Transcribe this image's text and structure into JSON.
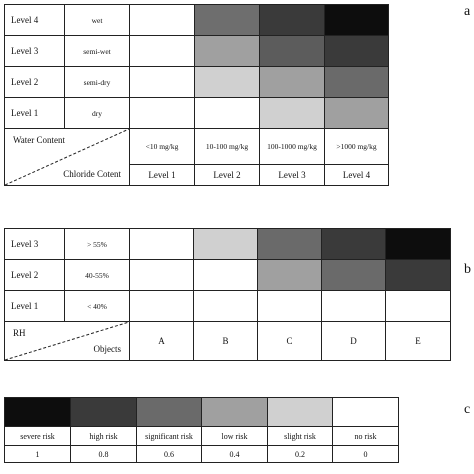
{
  "panel_a": {
    "label": "a",
    "rows": [
      {
        "level": "Level 4",
        "desc": "wet",
        "colors": [
          "#ffffff",
          "#6e6e6e",
          "#3a3a3a",
          "#0d0d0d"
        ]
      },
      {
        "level": "Level 3",
        "desc": "semi-wet",
        "colors": [
          "#ffffff",
          "#a0a0a0",
          "#5c5c5c",
          "#3a3a3a"
        ]
      },
      {
        "level": "Level 2",
        "desc": "semi-dry",
        "colors": [
          "#ffffff",
          "#d0d0d0",
          "#a0a0a0",
          "#6a6a6a"
        ]
      },
      {
        "level": "Level 1",
        "desc": "dry",
        "colors": [
          "#ffffff",
          "#ffffff",
          "#d0d0d0",
          "#a0a0a0"
        ]
      }
    ],
    "corner_top": "Water Content",
    "corner_bottom": "Chloride Cotent",
    "ranges": [
      "<10 mg/kg",
      "10-100 mg/kg",
      "100-1000 mg/kg",
      ">1000 mg/kg"
    ],
    "levels": [
      "Level 1",
      "Level 2",
      "Level 3",
      "Level 4"
    ]
  },
  "panel_b": {
    "label": "b",
    "rows": [
      {
        "level": "Level 3",
        "desc": "> 55%",
        "colors": [
          "#ffffff",
          "#d0d0d0",
          "#6a6a6a",
          "#3a3a3a",
          "#0d0d0d"
        ]
      },
      {
        "level": "Level 2",
        "desc": "40-55%",
        "colors": [
          "#ffffff",
          "#ffffff",
          "#a0a0a0",
          "#6a6a6a",
          "#3a3a3a"
        ]
      },
      {
        "level": "Level 1",
        "desc": "< 40%",
        "colors": [
          "#ffffff",
          "#ffffff",
          "#ffffff",
          "#ffffff",
          "#ffffff"
        ]
      }
    ],
    "corner_top": "RH",
    "corner_bottom": "Objects",
    "objects": [
      "A",
      "B",
      "C",
      "D",
      "E"
    ]
  },
  "panel_c": {
    "label": "c",
    "colors": [
      "#0d0d0d",
      "#3a3a3a",
      "#6a6a6a",
      "#a0a0a0",
      "#d0d0d0",
      "#ffffff"
    ],
    "labels": [
      "severe risk",
      "high risk",
      "significant risk",
      "low risk",
      "slight risk",
      "no risk"
    ],
    "values": [
      "1",
      "0.8",
      "0.6",
      "0.4",
      "0.2",
      "0"
    ]
  }
}
